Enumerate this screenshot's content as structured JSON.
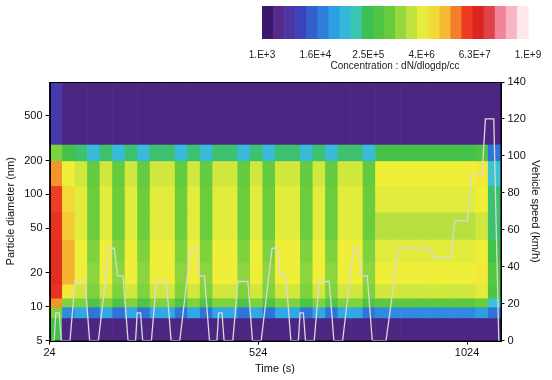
{
  "chart_data": {
    "type": "heatmap",
    "x_label": "Time (s)",
    "y_label": "Particle diameter (nm)",
    "y2_label": "Vehicle speed (km/h)",
    "xlim": [
      24,
      1104
    ],
    "xticks": [
      24,
      524,
      1024
    ],
    "ylim": [
      5,
      1000
    ],
    "yticks": [
      5,
      10,
      20,
      50,
      100,
      200,
      500
    ],
    "y2lim": [
      0,
      140
    ],
    "y2ticks": [
      0,
      20,
      40,
      60,
      80,
      100,
      120,
      140
    ],
    "log": "y",
    "grid": false,
    "colorbar": {
      "label": "Concentration : dN/dlogdp/cc",
      "range": [
        1000,
        1000000000
      ],
      "ticks": [
        {
          "value": 1000,
          "label": "1.E+3"
        },
        {
          "value": 16000,
          "label": "1.6E+4"
        },
        {
          "value": 250000,
          "label": "2.5E+5"
        },
        {
          "value": 4000000,
          "label": "4.E+6"
        },
        {
          "value": 63000000,
          "label": "6.3E+7"
        },
        {
          "value": 1000000000,
          "label": "1.E+9"
        }
      ]
    },
    "heatmap": {
      "x_edges": [
        24,
        54,
        84,
        114,
        144,
        174,
        204,
        234,
        264,
        294,
        324,
        354,
        384,
        414,
        444,
        474,
        504,
        534,
        564,
        594,
        624,
        654,
        684,
        714,
        744,
        774,
        804,
        834,
        864,
        894,
        924,
        954,
        984,
        1014,
        1044,
        1074,
        1104
      ],
      "y_edges": [
        5,
        8,
        10,
        12,
        16,
        25,
        40,
        70,
        120,
        200,
        280,
        1000
      ],
      "cells": [
        [
          300000.0,
          2000.0,
          2000.0,
          2000.0,
          2000.0,
          2000.0,
          2000.0,
          2000.0,
          2000.0,
          2000.0,
          2000.0,
          2000.0,
          2000.0,
          2000.0,
          2000.0,
          2000.0,
          2000.0,
          2000.0,
          2000.0,
          2000.0,
          2000.0,
          2000.0,
          2000.0,
          2000.0,
          2000.0,
          2000.0,
          2000.0,
          2000.0,
          2000.0,
          2000.0,
          2000.0,
          2000.0,
          2000.0,
          2000.0,
          2000.0,
          2000.0
        ],
        [
          1000000.0,
          30000.0,
          50000.0,
          20000.0,
          50000.0,
          20000.0,
          50000.0,
          20000.0,
          50000.0,
          50000.0,
          20000.0,
          50000.0,
          20000.0,
          50000.0,
          50000.0,
          20000.0,
          50000.0,
          20000.0,
          50000.0,
          50000.0,
          20000.0,
          50000.0,
          20000.0,
          50000.0,
          50000.0,
          20000.0,
          30000.0,
          30000.0,
          30000.0,
          30000.0,
          30000.0,
          30000.0,
          30000.0,
          30000.0,
          40000.0,
          20000.0
        ],
        [
          20000000.0,
          1000000.0,
          1000000.0,
          400000.0,
          1000000.0,
          400000.0,
          1000000.0,
          400000.0,
          1000000.0,
          1000000.0,
          400000.0,
          1000000.0,
          400000.0,
          1000000.0,
          1000000.0,
          400000.0,
          1000000.0,
          400000.0,
          1000000.0,
          1000000.0,
          400000.0,
          1000000.0,
          400000.0,
          1000000.0,
          1000000.0,
          400000.0,
          600000.0,
          600000.0,
          600000.0,
          600000.0,
          600000.0,
          600000.0,
          600000.0,
          600000.0,
          800000.0,
          100000.0
        ],
        [
          50000000.0,
          6000000.0,
          3000000.0,
          1000000.0,
          3000000.0,
          1000000.0,
          3000000.0,
          1000000.0,
          3000000.0,
          3000000.0,
          1000000.0,
          3000000.0,
          1000000.0,
          3000000.0,
          3000000.0,
          1000000.0,
          3000000.0,
          1000000.0,
          3000000.0,
          3000000.0,
          1000000.0,
          3000000.0,
          1000000.0,
          3000000.0,
          3000000.0,
          1000000.0,
          3000000.0,
          3000000.0,
          3000000.0,
          3000000.0,
          3000000.0,
          3000000.0,
          3000000.0,
          3000000.0,
          4000000.0,
          400000.0
        ],
        [
          60000000.0,
          15000000.0,
          5000000.0,
          1200000.0,
          5000000.0,
          1200000.0,
          5000000.0,
          1200000.0,
          5000000.0,
          5000000.0,
          1200000.0,
          5000000.0,
          1200000.0,
          5000000.0,
          5000000.0,
          1200000.0,
          5000000.0,
          1200000.0,
          5000000.0,
          5000000.0,
          1200000.0,
          5000000.0,
          1200000.0,
          5000000.0,
          5000000.0,
          1200000.0,
          5000000.0,
          5000000.0,
          5000000.0,
          5000000.0,
          5000000.0,
          5000000.0,
          5000000.0,
          5000000.0,
          6000000.0,
          500000.0
        ],
        [
          60000000.0,
          15000000.0,
          5000000.0,
          1000000.0,
          5000000.0,
          1000000.0,
          5000000.0,
          1000000.0,
          5000000.0,
          5000000.0,
          1000000.0,
          5000000.0,
          1000000.0,
          5000000.0,
          5000000.0,
          1000000.0,
          5000000.0,
          1000000.0,
          5000000.0,
          5000000.0,
          1000000.0,
          5000000.0,
          1000000.0,
          5000000.0,
          5000000.0,
          1000000.0,
          4000000.0,
          4000000.0,
          4000000.0,
          4000000.0,
          4000000.0,
          4000000.0,
          4000000.0,
          4000000.0,
          5000000.0,
          300000.0
        ],
        [
          50000000.0,
          10000000.0,
          4000000.0,
          800000.0,
          4000000.0,
          800000.0,
          4000000.0,
          800000.0,
          4000000.0,
          4000000.0,
          800000.0,
          4000000.0,
          800000.0,
          4000000.0,
          4000000.0,
          800000.0,
          4000000.0,
          800000.0,
          4000000.0,
          4000000.0,
          800000.0,
          4000000.0,
          800000.0,
          4000000.0,
          4000000.0,
          800000.0,
          2000000.0,
          2000000.0,
          2000000.0,
          2000000.0,
          2000000.0,
          2000000.0,
          2000000.0,
          2000000.0,
          3000000.0,
          200000.0
        ],
        [
          40000000.0,
          8000000.0,
          4000000.0,
          800000.0,
          4000000.0,
          800000.0,
          4000000.0,
          800000.0,
          4000000.0,
          4000000.0,
          800000.0,
          4000000.0,
          800000.0,
          4000000.0,
          4000000.0,
          800000.0,
          4000000.0,
          800000.0,
          4000000.0,
          4000000.0,
          800000.0,
          4000000.0,
          800000.0,
          4000000.0,
          4000000.0,
          800000.0,
          4000000.0,
          4000000.0,
          4000000.0,
          4000000.0,
          4000000.0,
          4000000.0,
          4000000.0,
          4000000.0,
          5000000.0,
          200000.0
        ],
        [
          20000000.0,
          5000000.0,
          3000000.0,
          700000.0,
          3000000.0,
          700000.0,
          3000000.0,
          700000.0,
          3000000.0,
          3000000.0,
          700000.0,
          3000000.0,
          700000.0,
          3000000.0,
          3000000.0,
          700000.0,
          3000000.0,
          700000.0,
          3000000.0,
          3000000.0,
          700000.0,
          3000000.0,
          700000.0,
          3000000.0,
          3000000.0,
          700000.0,
          5000000.0,
          5000000.0,
          5000000.0,
          5000000.0,
          5000000.0,
          5000000.0,
          5000000.0,
          5000000.0,
          6000000.0,
          100000.0
        ],
        [
          1000000.0,
          300000.0,
          200000.0,
          80000.0,
          200000.0,
          80000.0,
          200000.0,
          80000.0,
          200000.0,
          200000.0,
          80000.0,
          200000.0,
          80000.0,
          200000.0,
          200000.0,
          80000.0,
          200000.0,
          80000.0,
          200000.0,
          200000.0,
          80000.0,
          200000.0,
          80000.0,
          200000.0,
          200000.0,
          80000.0,
          300000.0,
          300000.0,
          300000.0,
          300000.0,
          300000.0,
          300000.0,
          300000.0,
          300000.0,
          400000.0,
          20000.0
        ],
        [
          5000.0,
          2000.0,
          2000.0,
          2000.0,
          2000.0,
          2000.0,
          2000.0,
          2000.0,
          2000.0,
          2000.0,
          2000.0,
          2000.0,
          2000.0,
          2000.0,
          2000.0,
          2000.0,
          2000.0,
          2000.0,
          2000.0,
          2000.0,
          2000.0,
          2000.0,
          2000.0,
          2000.0,
          2000.0,
          2000.0,
          2000.0,
          2000.0,
          2000.0,
          2000.0,
          2000.0,
          2000.0,
          2000.0,
          2000.0,
          2000.0,
          2000.0
        ]
      ]
    },
    "series": [
      {
        "type": "line",
        "axis": "y2",
        "color": "#d9d9d9",
        "x": [
          24,
          35,
          39,
          47,
          52,
          73,
          85,
          109,
          120,
          141,
          167,
          179,
          187,
          200,
          212,
          219,
          230,
          234,
          242,
          247,
          268,
          280,
          304,
          315,
          336,
          362,
          374,
          382,
          395,
          407,
          414,
          425,
          429,
          437,
          442,
          463,
          475,
          499,
          510,
          531,
          557,
          569,
          577,
          590,
          602,
          609,
          620,
          624,
          632,
          637,
          658,
          670,
          694,
          705,
          726,
          752,
          764,
          772,
          785,
          797,
          804,
          830,
          860,
          935,
          945,
          985,
          995,
          1025,
          1035,
          1060,
          1068,
          1088,
          1100,
          1104
        ],
        "values": [
          0,
          0,
          15,
          15,
          0,
          0,
          32,
          32,
          0,
          0,
          50,
          50,
          35,
          35,
          0,
          0,
          0,
          15,
          15,
          0,
          0,
          32,
          32,
          0,
          0,
          50,
          50,
          35,
          35,
          0,
          0,
          0,
          15,
          15,
          0,
          0,
          32,
          32,
          0,
          0,
          50,
          50,
          35,
          35,
          0,
          0,
          0,
          15,
          15,
          0,
          0,
          32,
          32,
          0,
          0,
          50,
          50,
          35,
          35,
          0,
          0,
          0,
          50,
          50,
          45,
          45,
          65,
          65,
          90,
          90,
          120,
          120,
          0,
          0
        ]
      }
    ]
  }
}
